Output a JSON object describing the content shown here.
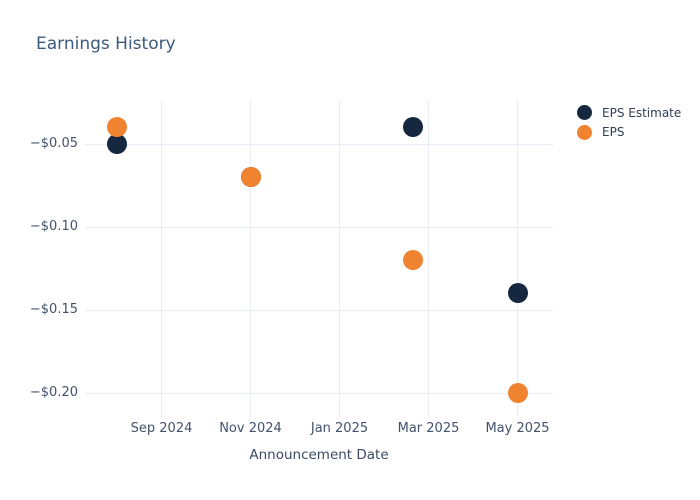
{
  "chart_data": {
    "type": "scatter",
    "title": "Earnings History",
    "xlabel": "Announcement Date",
    "ylabel": "",
    "x_tick_labels": [
      "Sep 2024",
      "Nov 2024",
      "Jan 2025",
      "Mar 2025",
      "May 2025"
    ],
    "x_tick_month_offsets": [
      0,
      2,
      4,
      6,
      8
    ],
    "y_tick_labels": [
      "−$0.05",
      "−$0.10",
      "−$0.15",
      "−$0.20"
    ],
    "y_tick_values": [
      -0.05,
      -0.1,
      -0.15,
      -0.2
    ],
    "xlim_month_offsets": [
      -1.72,
      8.8
    ],
    "ylim": [
      -0.214,
      -0.023
    ],
    "grid": true,
    "legend_position": "top-right-outside",
    "marker_size_px": 20,
    "series": [
      {
        "name": "EPS Estimate",
        "color": "#16283f",
        "points": [
          {
            "date": "Aug 2024",
            "month_offset": -1.0,
            "value": -0.05
          },
          {
            "date": "Nov 2024",
            "month_offset": 2.0,
            "value": -0.07
          },
          {
            "date": "Feb 2025",
            "month_offset": 5.65,
            "value": -0.04
          },
          {
            "date": "May 2025",
            "month_offset": 8.0,
            "value": -0.14
          }
        ]
      },
      {
        "name": "EPS",
        "color": "#f0832f",
        "points": [
          {
            "date": "Aug 2024",
            "month_offset": -1.0,
            "value": -0.04
          },
          {
            "date": "Nov 2024",
            "month_offset": 2.0,
            "value": -0.07
          },
          {
            "date": "Feb 2025",
            "month_offset": 5.65,
            "value": -0.12
          },
          {
            "date": "May 2025",
            "month_offset": 8.0,
            "value": -0.2
          }
        ]
      }
    ],
    "colors": {
      "background": "#ffffff",
      "grid": "#e8edf5",
      "title_text": "#3c5a7e",
      "tick_text": "#42526b",
      "axis_title_text": "#3a4a63",
      "legend_text": "#2e4054"
    }
  }
}
